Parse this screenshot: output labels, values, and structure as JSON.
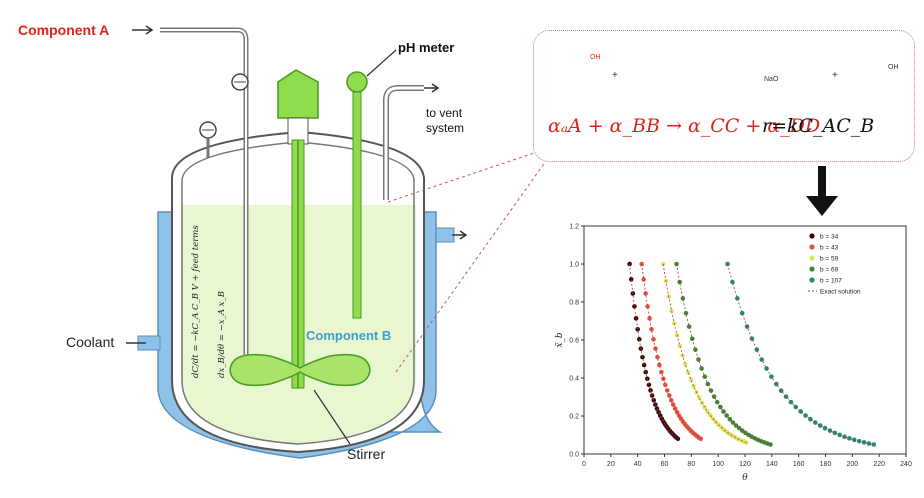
{
  "labels": {
    "component_a": "Component A",
    "ph_meter": "pH meter",
    "vent_line1": "to vent",
    "vent_line2": "system",
    "coolant": "Coolant",
    "component_b": "Component B",
    "stirrer": "Stirrer"
  },
  "equation": {
    "reaction": "αₐA + α_BB → α_CC + α_DD",
    "rate": "r=kC_AC_B"
  },
  "molecules": {
    "oh1": "OH",
    "oh2": "OH",
    "nao": "NaO",
    "plus1": "+",
    "plus2": "+"
  },
  "colors": {
    "component_a": "#e0231c",
    "component_b": "#3a9fd6",
    "liquid": "#e8f7cf",
    "jacket": "#8fc2e8",
    "stirrer": "#8fdc4c",
    "dashed_connector": "#c25a5a"
  },
  "chart_data": {
    "type": "line",
    "xlabel": "θ",
    "ylabel": "x̃_b",
    "xlim": [
      0,
      240
    ],
    "ylim": [
      0,
      1.2
    ],
    "xticks": [
      0,
      20,
      40,
      60,
      80,
      100,
      120,
      140,
      160,
      180,
      200,
      220,
      240
    ],
    "yticks": [
      0.0,
      0.2,
      0.4,
      0.6,
      0.8,
      1.0,
      1.2
    ],
    "legend_position": "top-right",
    "series": [
      {
        "name": "b = 34",
        "color": "#3a0c0c",
        "x_start": 34,
        "x_end": 70,
        "y_end": 0.08
      },
      {
        "name": "b = 43",
        "color": "#e6533a",
        "x_start": 43,
        "x_end": 87,
        "y_end": 0.08
      },
      {
        "name": "b = 59",
        "color": "#d8e85c",
        "x_start": 59,
        "x_end": 121,
        "y_end": 0.06
      },
      {
        "name": "b = 69",
        "color": "#3d8a34",
        "x_start": 69,
        "x_end": 139,
        "y_end": 0.05
      },
      {
        "name": "b = 107",
        "color": "#1f8c7a",
        "x_start": 107,
        "x_end": 216,
        "y_end": 0.05
      }
    ],
    "exact_label": "Exact solution"
  }
}
